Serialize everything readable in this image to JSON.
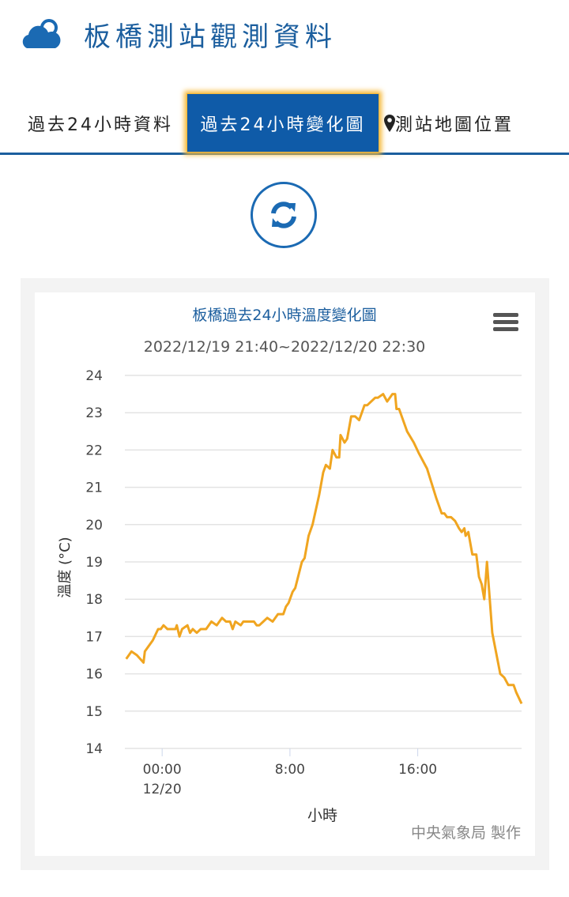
{
  "header": {
    "title": "板橋測站觀測資料",
    "icon": "cloud-icon"
  },
  "tabs": [
    {
      "label": "過去24小時資料",
      "active": false
    },
    {
      "label": "過去24小時變化圖",
      "active": true
    },
    {
      "label": "測站地圖位置",
      "active": false,
      "icon": "map-marker-icon"
    }
  ],
  "refresh": {
    "icon": "refresh-icon"
  },
  "colors": {
    "brand": "#1b5e9e",
    "active_tab": "#0f5ba8",
    "line": "#f0a520"
  },
  "chart_data": {
    "type": "line",
    "title": "板橋過去24小時溫度變化圖",
    "subtitle": "2022/12/19 21:40~2022/12/20 22:30",
    "xlabel": "小時",
    "ylabel": "溫度 (°C)",
    "credits": "中央氣象局 製作",
    "ylim": [
      14,
      24
    ],
    "yticks": [
      "14",
      "15",
      "16",
      "17",
      "18",
      "19",
      "20",
      "21",
      "22",
      "23",
      "24"
    ],
    "xticks": [
      {
        "time": "12/20 00:00",
        "label": "00:00",
        "sublabel": "12/20"
      },
      {
        "time": "12/20 08:00",
        "label": "8:00",
        "sublabel": ""
      },
      {
        "time": "12/20 16:00",
        "label": "16:00",
        "sublabel": ""
      }
    ],
    "xlim": [
      "12/19 21:40",
      "12/20 22:30"
    ],
    "grid": true,
    "points": [
      [
        "12/19 21:45",
        16.4
      ],
      [
        "12/19 22:05",
        16.6
      ],
      [
        "12/19 22:25",
        16.5
      ],
      [
        "12/19 22:50",
        16.3
      ],
      [
        "12/19 22:55",
        16.6
      ],
      [
        "12/19 23:25",
        16.9
      ],
      [
        "12/19 23:45",
        17.2
      ],
      [
        "12/19 23:55",
        17.2
      ],
      [
        "12/20 00:05",
        17.3
      ],
      [
        "12/20 00:20",
        17.2
      ],
      [
        "12/20 00:50",
        17.2
      ],
      [
        "12/20 00:55",
        17.3
      ],
      [
        "12/20 01:05",
        17.0
      ],
      [
        "12/20 01:15",
        17.2
      ],
      [
        "12/20 01:35",
        17.3
      ],
      [
        "12/20 01:45",
        17.1
      ],
      [
        "12/20 01:55",
        17.2
      ],
      [
        "12/20 02:10",
        17.1
      ],
      [
        "12/20 02:25",
        17.2
      ],
      [
        "12/20 02:45",
        17.2
      ],
      [
        "12/20 03:05",
        17.4
      ],
      [
        "12/20 03:25",
        17.3
      ],
      [
        "12/20 03:45",
        17.5
      ],
      [
        "12/20 04:00",
        17.4
      ],
      [
        "12/20 04:15",
        17.4
      ],
      [
        "12/20 04:25",
        17.2
      ],
      [
        "12/20 04:35",
        17.4
      ],
      [
        "12/20 04:55",
        17.3
      ],
      [
        "12/20 05:05",
        17.4
      ],
      [
        "12/20 05:45",
        17.4
      ],
      [
        "12/20 05:55",
        17.3
      ],
      [
        "12/20 06:05",
        17.3
      ],
      [
        "12/20 06:20",
        17.4
      ],
      [
        "12/20 06:35",
        17.5
      ],
      [
        "12/20 06:55",
        17.4
      ],
      [
        "12/20 07:15",
        17.6
      ],
      [
        "12/20 07:35",
        17.6
      ],
      [
        "12/20 07:45",
        17.8
      ],
      [
        "12/20 07:55",
        17.9
      ],
      [
        "12/20 08:10",
        18.2
      ],
      [
        "12/20 08:20",
        18.3
      ],
      [
        "12/20 08:45",
        19.0
      ],
      [
        "12/20 08:55",
        19.1
      ],
      [
        "12/20 09:10",
        19.7
      ],
      [
        "12/20 09:25",
        20.0
      ],
      [
        "12/20 09:50",
        20.8
      ],
      [
        "12/20 10:05",
        21.4
      ],
      [
        "12/20 10:15",
        21.6
      ],
      [
        "12/20 10:30",
        21.5
      ],
      [
        "12/20 10:40",
        22.0
      ],
      [
        "12/20 10:55",
        21.8
      ],
      [
        "12/20 11:05",
        21.8
      ],
      [
        "12/20 11:10",
        22.4
      ],
      [
        "12/20 11:25",
        22.2
      ],
      [
        "12/20 11:35",
        22.3
      ],
      [
        "12/20 11:50",
        22.9
      ],
      [
        "12/20 12:05",
        22.9
      ],
      [
        "12/20 12:20",
        22.8
      ],
      [
        "12/20 12:40",
        23.2
      ],
      [
        "12/20 12:50",
        23.2
      ],
      [
        "12/20 13:20",
        23.4
      ],
      [
        "12/20 13:30",
        23.4
      ],
      [
        "12/20 13:50",
        23.5
      ],
      [
        "12/20 14:05",
        23.3
      ],
      [
        "12/20 14:25",
        23.5
      ],
      [
        "12/20 14:35",
        23.5
      ],
      [
        "12/20 14:40",
        23.1
      ],
      [
        "12/20 14:50",
        23.1
      ],
      [
        "12/20 15:20",
        22.5
      ],
      [
        "12/20 15:45",
        22.2
      ],
      [
        "12/20 16:05",
        21.9
      ],
      [
        "12/20 16:35",
        21.5
      ],
      [
        "12/20 17:10",
        20.7
      ],
      [
        "12/20 17:30",
        20.3
      ],
      [
        "12/20 17:40",
        20.3
      ],
      [
        "12/20 17:50",
        20.2
      ],
      [
        "12/20 18:05",
        20.2
      ],
      [
        "12/20 18:20",
        20.1
      ],
      [
        "12/20 18:35",
        19.9
      ],
      [
        "12/20 18:45",
        19.8
      ],
      [
        "12/20 18:55",
        19.9
      ],
      [
        "12/20 19:00",
        19.7
      ],
      [
        "12/20 19:10",
        19.8
      ],
      [
        "12/20 19:25",
        19.2
      ],
      [
        "12/20 19:40",
        19.2
      ],
      [
        "12/20 19:50",
        18.6
      ],
      [
        "12/20 20:00",
        18.4
      ],
      [
        "12/20 20:10",
        18.0
      ],
      [
        "12/20 20:20",
        19.0
      ],
      [
        "12/20 20:40",
        17.1
      ],
      [
        "12/20 21:10",
        16.0
      ],
      [
        "12/20 21:25",
        15.9
      ],
      [
        "12/20 21:40",
        15.7
      ],
      [
        "12/20 22:00",
        15.7
      ],
      [
        "12/20 22:10",
        15.5
      ],
      [
        "12/20 22:30",
        15.2
      ]
    ]
  }
}
